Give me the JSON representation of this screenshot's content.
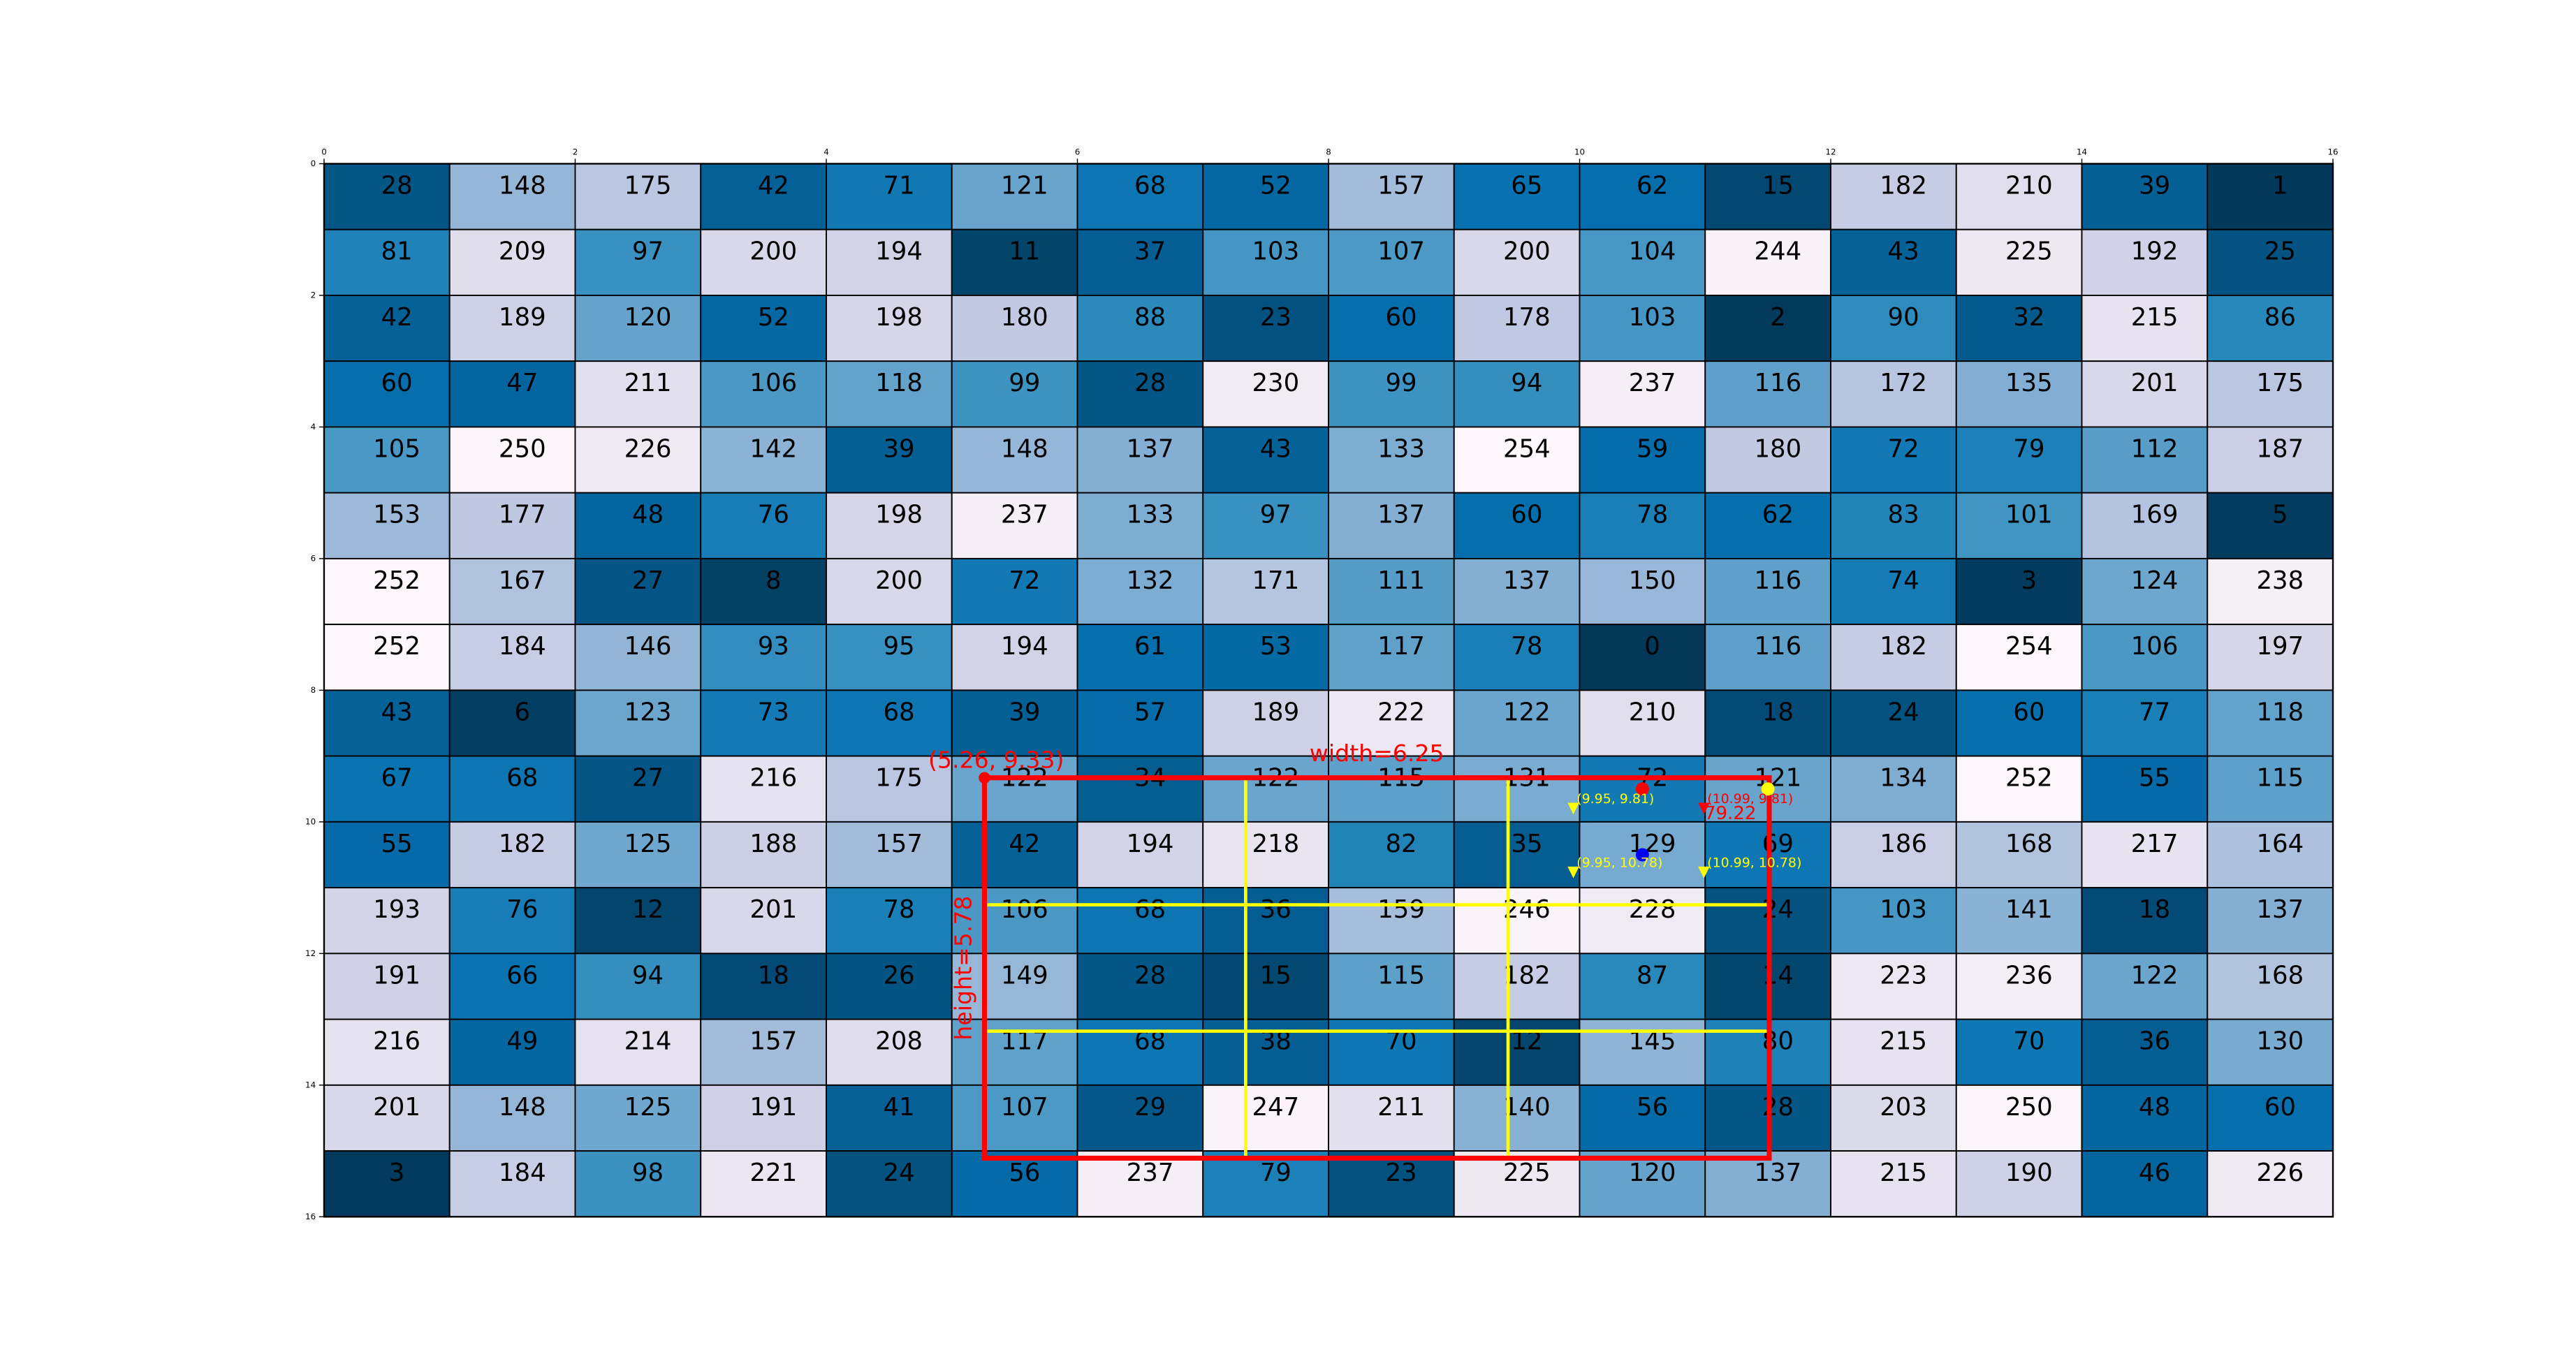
{
  "chart_data": {
    "type": "heatmap",
    "values": [
      [
        28,
        148,
        175,
        42,
        71,
        121,
        68,
        52,
        157,
        65,
        62,
        15,
        182,
        210,
        39,
        1
      ],
      [
        81,
        209,
        97,
        200,
        194,
        11,
        37,
        103,
        107,
        200,
        104,
        244,
        43,
        225,
        192,
        25
      ],
      [
        42,
        189,
        120,
        52,
        198,
        180,
        88,
        23,
        60,
        178,
        103,
        2,
        90,
        32,
        215,
        86
      ],
      [
        60,
        47,
        211,
        106,
        118,
        99,
        28,
        230,
        99,
        94,
        237,
        116,
        172,
        135,
        201,
        175
      ],
      [
        105,
        250,
        226,
        142,
        39,
        148,
        137,
        43,
        133,
        254,
        59,
        180,
        72,
        79,
        112,
        187
      ],
      [
        153,
        177,
        48,
        76,
        198,
        237,
        133,
        97,
        137,
        60,
        78,
        62,
        83,
        101,
        169,
        5
      ],
      [
        252,
        167,
        27,
        8,
        200,
        72,
        132,
        171,
        111,
        137,
        150,
        116,
        74,
        3,
        124,
        238
      ],
      [
        252,
        184,
        146,
        93,
        95,
        194,
        61,
        53,
        117,
        78,
        0,
        116,
        182,
        254,
        106,
        197
      ],
      [
        43,
        6,
        123,
        73,
        68,
        39,
        57,
        189,
        222,
        122,
        210,
        18,
        24,
        60,
        77,
        118
      ],
      [
        67,
        68,
        27,
        216,
        175,
        122,
        34,
        122,
        115,
        131,
        72,
        121,
        134,
        252,
        55,
        115
      ],
      [
        55,
        182,
        125,
        188,
        157,
        42,
        194,
        218,
        82,
        35,
        129,
        69,
        186,
        168,
        217,
        164
      ],
      [
        193,
        76,
        12,
        201,
        78,
        106,
        68,
        36,
        159,
        246,
        228,
        24,
        103,
        141,
        18,
        137
      ],
      [
        191,
        66,
        94,
        18,
        26,
        149,
        28,
        15,
        115,
        182,
        87,
        14,
        223,
        236,
        122,
        168
      ],
      [
        216,
        49,
        214,
        157,
        208,
        117,
        68,
        38,
        70,
        12,
        145,
        80,
        215,
        70,
        36,
        130
      ],
      [
        201,
        148,
        125,
        191,
        41,
        107,
        29,
        247,
        211,
        140,
        56,
        28,
        203,
        250,
        48,
        60
      ],
      [
        3,
        184,
        98,
        221,
        24,
        56,
        237,
        79,
        23,
        225,
        120,
        137,
        215,
        190,
        46,
        226
      ]
    ],
    "colormap": [
      "#023858",
      "#045a8d",
      "#0570b0",
      "#3690c0",
      "#74a9cf",
      "#a6bddb",
      "#d0d1e6",
      "#ece7f2",
      "#fff7fb"
    ],
    "xlim": [
      0,
      16
    ],
    "ylim": [
      0,
      16
    ],
    "xticks": [
      0,
      2,
      4,
      6,
      8,
      10,
      12,
      14,
      16
    ],
    "yticks": [
      0,
      2,
      4,
      6,
      8,
      10,
      12,
      14,
      16
    ],
    "box": {
      "x": 5.26,
      "y": 9.33,
      "width": 6.25,
      "height": 5.78,
      "color": "#ff0000",
      "corner_label": "(5.26, 9.33)",
      "width_label": "width=6.25",
      "height_label": "height=5.78"
    },
    "grid_lines": {
      "color": "#ffff00",
      "x": [
        7.34,
        9.43
      ],
      "y": [
        11.26,
        13.18
      ]
    },
    "dots": [
      {
        "x": 10.5,
        "y": 9.5,
        "color": "#ff0000"
      },
      {
        "x": 11.5,
        "y": 9.5,
        "color": "#ffff00"
      },
      {
        "x": 10.5,
        "y": 10.5,
        "color": "#0000ff"
      }
    ],
    "markers": [
      {
        "x": 9.95,
        "y": 9.81,
        "label": "(9.95, 9.81)",
        "color": "#ffff00"
      },
      {
        "x": 10.99,
        "y": 9.81,
        "label": "(10.99, 9.81)",
        "color": "#ff0000"
      },
      {
        "x": 9.95,
        "y": 10.78,
        "label": "(9.95, 10.78)",
        "color": "#ffff00"
      },
      {
        "x": 10.99,
        "y": 10.78,
        "label": "(10.99, 10.78)",
        "color": "#ffff00"
      }
    ],
    "note": {
      "x": 11.2,
      "y": 9.88,
      "text": "79.22",
      "color": "#ff0000"
    }
  }
}
